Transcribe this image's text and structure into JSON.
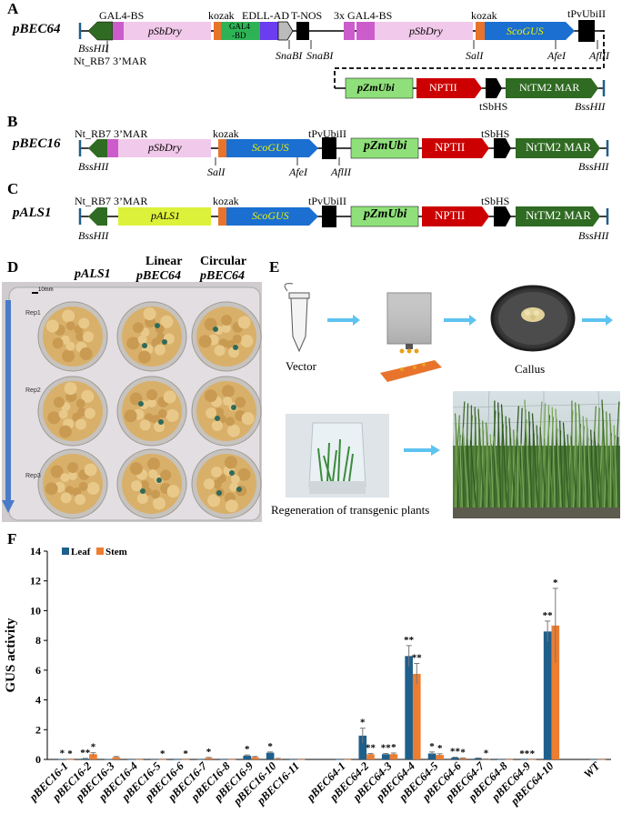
{
  "panels": {
    "A": "A",
    "B": "B",
    "C": "C",
    "D": "D",
    "E": "E",
    "F": "F"
  },
  "constructs": {
    "A": {
      "name": "pBEC64",
      "labels": {
        "gal4bs": "GAL4-BS",
        "kozak1": "kozak",
        "edll": "EDLL-AD",
        "tnos": "T-NOS",
        "gal4bs3x": "3x GAL4-BS",
        "kozak2": "kozak",
        "tpvubi": "tPvUbiII",
        "bsshii_left": "BssHII",
        "mar": "Nt_RB7 3’MAR",
        "snab1": "SnaBI",
        "snab2": "SnaBI",
        "sal": "SalI",
        "afe": "AfeI",
        "afl": "AflII",
        "tsbhs": "tSbHS",
        "bsshii_right": "BssHII"
      },
      "boxes": {
        "psbdry1": "pSbDry",
        "gal4bd_1": "GAL4",
        "gal4bd_2": "-BD",
        "psbdry2": "pSbDry",
        "scogus": "ScoGUS",
        "pzmubi": "pZmUbi",
        "nptii": "NPTII",
        "mar": "NtTM2 MAR"
      }
    },
    "B": {
      "name": "pBEC16",
      "labels": {
        "mar": "Nt_RB7 3’MAR",
        "kozak": "kozak",
        "tpvubi": "tPvUbiII",
        "tsbhs": "tSbHS",
        "bsshii_left": "BssHII",
        "sal": "SalI",
        "afe": "AfeI",
        "afl": "AflII",
        "bsshii_right": "BssHII"
      },
      "boxes": {
        "psbdry": "pSbDry",
        "scogus": "ScoGUS",
        "pzmubi": "pZmUbi",
        "nptii": "NPTII",
        "mar": "NtTM2 MAR"
      }
    },
    "C": {
      "name": "pALS1",
      "labels": {
        "mar": "Nt_RB7 3’MAR",
        "kozak": "kozak",
        "tpvubi": "tPvUbiII",
        "tsbhs": "tSbHS",
        "bsshii_left": "BssHII",
        "bsshii_right": "BssHII"
      },
      "boxes": {
        "pals1": "pALS1",
        "scogus": "ScoGUS",
        "pzmubi": "pZmUbi",
        "nptii": "NPTII",
        "mar": "NtTM2 MAR"
      }
    }
  },
  "panelD": {
    "col1": "pALS1",
    "col2a": "Linear",
    "col2b": "pBEC64",
    "col3a": "Circular",
    "col3b": "pBEC64",
    "scale": "10mm",
    "rep1": "Rep1",
    "rep2": "Rep2",
    "rep3": "Rep3"
  },
  "panelE": {
    "vector": "Vector",
    "callus": "Callus",
    "regeneration": "Regeneration of transgenic plants"
  },
  "colors": {
    "leaf": "#1f5f8b",
    "stem": "#ed7d31",
    "pink": "#f1c9ea",
    "magenta": "#cc5ccc",
    "orange": "#e8742c",
    "blue": "#1a6fd0",
    "green_dark": "#2f6b22",
    "green_light": "#8fe07a",
    "red": "#cc0000",
    "yellow": "#dcf23a",
    "gal4": "#2db356",
    "edll": "#6b3cf0"
  },
  "chart_data": {
    "type": "bar",
    "ylabel": "GUS activity",
    "ylim": [
      0,
      14
    ],
    "yticks": [
      "0",
      "2",
      "4",
      "6",
      "8",
      "10",
      "12",
      "14"
    ],
    "legend": {
      "leaf": "Leaf",
      "stem": "Stem"
    },
    "legend_position": "top-left",
    "categories": [
      "pBEC16-1",
      "pBEC16-2",
      "pBEC16-3",
      "pBEC16-4",
      "pBEC16-5",
      "pBEC16-6",
      "pBEC16-7",
      "pBEC16-8",
      "pBEC16-9",
      "pBEC16-10",
      "pBEC16-11",
      "",
      "pBEC64-1",
      "pBEC64-2",
      "pBEC64-3",
      "pBEC64-4",
      "pBEC64-5",
      "pBEC64-6",
      "pBEC64-7",
      "pBEC64-8",
      "pBEC64-9",
      "pBEC64-10",
      "",
      "WT"
    ],
    "series": [
      {
        "name": "Leaf",
        "values": [
          0.02,
          0.05,
          0.02,
          0.01,
          0.01,
          0.01,
          0.01,
          0.01,
          0.25,
          0.45,
          0.01,
          null,
          0.01,
          1.6,
          0.35,
          6.95,
          0.4,
          0.12,
          0.08,
          0.01,
          0.01,
          8.6,
          null,
          0.01
        ],
        "errors": [
          0,
          0.02,
          0,
          0,
          0,
          0,
          0,
          0,
          0.05,
          0.05,
          0,
          null,
          0,
          0.5,
          0.05,
          0.7,
          0.1,
          0.03,
          0.02,
          0,
          0,
          0.7,
          null,
          0
        ]
      },
      {
        "name": "Stem",
        "values": [
          0.01,
          0.35,
          0.15,
          0.01,
          0.01,
          0.01,
          0.1,
          0.01,
          0.15,
          0.05,
          0.01,
          null,
          0.01,
          0.35,
          0.35,
          5.75,
          0.3,
          0.08,
          0.02,
          0.01,
          0.01,
          9.0,
          null,
          0.01
        ],
        "errors": [
          0,
          0.1,
          0.05,
          0,
          0,
          0,
          0.03,
          0,
          0.05,
          0.02,
          0,
          null,
          0,
          0.05,
          0.08,
          0.7,
          0.08,
          0.02,
          0.01,
          0,
          0,
          2.5,
          null,
          0
        ]
      }
    ],
    "annotations": [
      {
        "category": "pBEC16-1",
        "leaf": "*",
        "stem": "*"
      },
      {
        "category": "pBEC16-2",
        "leaf": "**",
        "stem": "*"
      },
      {
        "category": "pBEC16-5",
        "stem": "*"
      },
      {
        "category": "pBEC16-6",
        "stem": "*"
      },
      {
        "category": "pBEC16-7",
        "stem": "*"
      },
      {
        "category": "pBEC16-9",
        "leaf": "*"
      },
      {
        "category": "pBEC16-10",
        "leaf": "*"
      },
      {
        "category": "pBEC64-2",
        "leaf": "*",
        "stem": "**"
      },
      {
        "category": "pBEC64-3",
        "leaf": "**",
        "stem": "*"
      },
      {
        "category": "pBEC64-4",
        "leaf": "**",
        "stem": "**"
      },
      {
        "category": "pBEC64-5",
        "leaf": "*",
        "stem": "*"
      },
      {
        "category": "pBEC64-6",
        "leaf": "**",
        "stem": "*"
      },
      {
        "category": "pBEC64-7",
        "stem": "*"
      },
      {
        "category": "pBEC64-9",
        "leaf": "**",
        "stem": "*"
      },
      {
        "category": "pBEC64-10",
        "leaf": "**",
        "stem": "*"
      }
    ]
  }
}
